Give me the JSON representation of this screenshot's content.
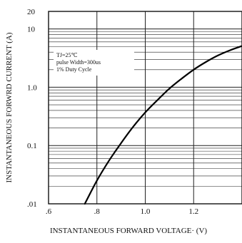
{
  "chart_data": {
    "type": "line",
    "xlabel": "INSTANTANEOUS FORWARD VOLTAGE· (V)",
    "ylabel": "INSTANTANEOUS FORWRD CURRENT (A)",
    "x_ticks": [
      {
        "value": 0.6,
        "label": ".6"
      },
      {
        "value": 0.8,
        "label": ".8"
      },
      {
        "value": 1.0,
        "label": "1.0"
      },
      {
        "value": 1.2,
        "label": "1.2"
      }
    ],
    "y_ticks": [
      {
        "value": 0.01,
        "label": ".01"
      },
      {
        "value": 0.1,
        "label": "0.1"
      },
      {
        "value": 1.0,
        "label": "1.0"
      },
      {
        "value": 10,
        "label": "10"
      },
      {
        "value": 20,
        "label": "20"
      }
    ],
    "xlim": [
      0.6,
      1.4
    ],
    "ylim": [
      0.01,
      20
    ],
    "y_scale": "log",
    "grid": true,
    "annotation": [
      "TJ=25℃",
      "pulse Width=300us",
      "1% Duty Cycle"
    ],
    "series": [
      {
        "x": [
          0.75,
          0.8,
          0.85,
          0.9,
          0.95,
          1.0,
          1.05,
          1.1,
          1.15,
          1.2,
          1.25,
          1.3,
          1.35,
          1.4
        ],
        "values": [
          0.01,
          0.025,
          0.055,
          0.11,
          0.21,
          0.37,
          0.6,
          0.95,
          1.4,
          2.0,
          2.7,
          3.5,
          4.3,
          5.1
        ]
      }
    ]
  }
}
